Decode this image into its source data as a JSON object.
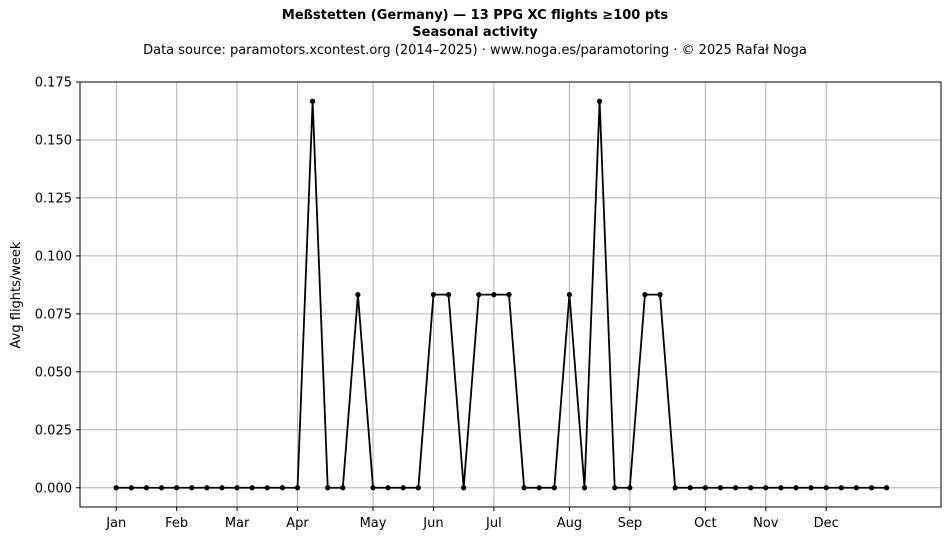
{
  "figure": {
    "title": "Meßstetten (Germany)  —  13 PPG XC flights ≥100 pts",
    "subtitle": "Seasonal activity",
    "source": "Data source: paramotors.xcontest.org (2014–2025)  ·  www.noga.es/paramotoring  ·  © 2025 Rafał Noga"
  },
  "chart_data": {
    "type": "line",
    "title": "Meßstetten (Germany)  —  13 PPG XC flights ≥100 pts",
    "subtitle": "Seasonal activity",
    "xlabel": "",
    "ylabel": "Avg flights/week",
    "x": [
      1,
      2,
      3,
      4,
      5,
      6,
      7,
      8,
      9,
      10,
      11,
      12,
      13,
      14,
      15,
      16,
      17,
      18,
      19,
      20,
      21,
      22,
      23,
      24,
      25,
      26,
      27,
      28,
      29,
      30,
      31,
      32,
      33,
      34,
      35,
      36,
      37,
      38,
      39,
      40,
      41,
      42,
      43,
      44,
      45,
      46,
      47,
      48,
      49,
      50,
      51,
      52
    ],
    "series": [
      {
        "values": [
          0,
          0,
          0,
          0,
          0,
          0,
          0,
          0,
          0,
          0,
          0,
          0,
          0,
          0.1667,
          0,
          0,
          0.0833,
          0,
          0,
          0,
          0,
          0.0833,
          0.0833,
          0,
          0.0833,
          0.0833,
          0.0833,
          0,
          0,
          0,
          0.0833,
          0,
          0.1667,
          0,
          0,
          0.0833,
          0.0833,
          0,
          0,
          0,
          0,
          0,
          0,
          0,
          0,
          0,
          0,
          0,
          0,
          0,
          0,
          0
        ],
        "color": "#000000",
        "marker": "circle"
      }
    ],
    "xlim": [
      -1.4,
      55.6
    ],
    "ylim": [
      -0.0083,
      0.175
    ],
    "x_ticks": [
      {
        "label": "Jan",
        "x": 1
      },
      {
        "label": "Feb",
        "x": 5
      },
      {
        "label": "Mar",
        "x": 9
      },
      {
        "label": "Apr",
        "x": 13
      },
      {
        "label": "May",
        "x": 18
      },
      {
        "label": "Jun",
        "x": 22
      },
      {
        "label": "Jul",
        "x": 26
      },
      {
        "label": "Aug",
        "x": 31
      },
      {
        "label": "Sep",
        "x": 35
      },
      {
        "label": "Oct",
        "x": 40
      },
      {
        "label": "Nov",
        "x": 44
      },
      {
        "label": "Dec",
        "x": 48
      }
    ],
    "y_ticks": [
      {
        "label": "0.000",
        "value": 0
      },
      {
        "label": "0.025",
        "value": 0.025
      },
      {
        "label": "0.050",
        "value": 0.05
      },
      {
        "label": "0.075",
        "value": 0.075
      },
      {
        "label": "0.100",
        "value": 0.1
      },
      {
        "label": "0.125",
        "value": 0.125
      },
      {
        "label": "0.150",
        "value": 0.15
      },
      {
        "label": "0.175",
        "value": 0.175
      }
    ],
    "grid": true,
    "grid_color": "#b0b0b0",
    "axes_color": "#000000"
  }
}
